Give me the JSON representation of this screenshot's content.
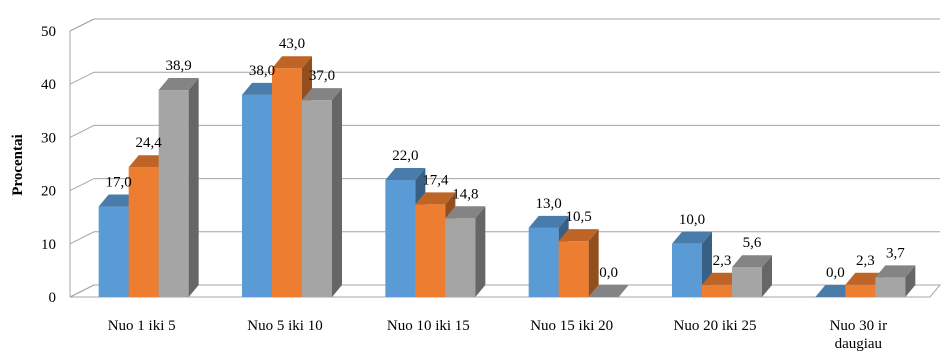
{
  "chart_data": {
    "type": "bar",
    "title": "",
    "xlabel": "",
    "ylabel": "Procentai",
    "ylim": [
      0,
      50
    ],
    "yticks": [
      0,
      10,
      20,
      30,
      40,
      50
    ],
    "grid": true,
    "legend": "none",
    "categories": [
      [
        "Nuo 1 iki 5"
      ],
      [
        "Nuo 5 iki 10"
      ],
      [
        "Nuo 10 iki 15"
      ],
      [
        "Nuo 15 iki 20"
      ],
      [
        "Nuo 20 iki 25"
      ],
      [
        "Nuo 30 ir",
        "daugiau"
      ]
    ],
    "series": [
      {
        "color": "#5B9BD5",
        "values": [
          17.0,
          38.0,
          22.0,
          13.0,
          10.0,
          0.0
        ]
      },
      {
        "color": "#ED7D31",
        "values": [
          24.4,
          43.0,
          17.4,
          10.5,
          2.3,
          2.3
        ]
      },
      {
        "color": "#A5A5A5",
        "values": [
          38.9,
          37.0,
          14.8,
          0.0,
          5.6,
          3.7
        ]
      }
    ],
    "value_labels": [
      [
        "17,0",
        "38,0",
        "22,0",
        "13,0",
        "10,0",
        "0,0"
      ],
      [
        "24,4",
        "43,0",
        "17,4",
        "10,5",
        "2,3",
        "2,3"
      ],
      [
        "38,9",
        "37,0",
        "14,8",
        "0,0",
        "5,6",
        "3,7"
      ]
    ]
  }
}
